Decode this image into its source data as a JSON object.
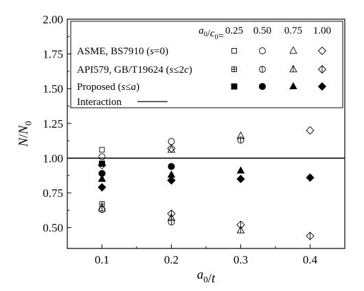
{
  "chart_data": {
    "type": "scatter",
    "title": "",
    "xlabel": "a0/t",
    "ylabel": "N/N0",
    "xlim": [
      0.05,
      0.45
    ],
    "ylim": [
      0.35,
      2.0
    ],
    "x_ticks": [
      "0.1",
      "0.2",
      "0.3",
      "0.4"
    ],
    "x_tick_values": [
      0.1,
      0.2,
      0.3,
      0.4
    ],
    "y_ticks": [
      "0.50",
      "0.75",
      "1.00",
      "1.25",
      "1.50",
      "1.75",
      "2.00"
    ],
    "y_tick_values": [
      0.5,
      0.75,
      1.0,
      1.25,
      1.5,
      1.75,
      2.0
    ],
    "reference_line": {
      "label": "Interaction",
      "y": 1.0
    },
    "legend": {
      "placement": "top-right",
      "header": "a0/c0=",
      "columns": [
        "0.25",
        "0.50",
        "0.75",
        "1.00"
      ],
      "rows": [
        {
          "label": "ASME, BS7910 (s=0)",
          "style": "open"
        },
        {
          "label": "API579, GB/T19624 (s≤2c)",
          "style": "crossed"
        },
        {
          "label": "Proposed (s≤a)",
          "style": "filled"
        },
        {
          "label": "Interaction",
          "style": "line"
        }
      ]
    },
    "series": [
      {
        "group": "ASME, BS7910 (s=0)",
        "ratio": "0.25",
        "marker": "square",
        "style": "open",
        "points": [
          [
            0.1,
            1.06
          ]
        ]
      },
      {
        "group": "ASME, BS7910 (s=0)",
        "ratio": "0.50",
        "marker": "circle",
        "style": "open",
        "points": [
          [
            0.1,
            1.01
          ],
          [
            0.2,
            1.12
          ]
        ]
      },
      {
        "group": "ASME, BS7910 (s=0)",
        "ratio": "0.75",
        "marker": "triangle",
        "style": "open",
        "points": [
          [
            0.2,
            1.06
          ],
          [
            0.3,
            1.16
          ]
        ]
      },
      {
        "group": "ASME, BS7910 (s=0)",
        "ratio": "1.00",
        "marker": "diamond",
        "style": "open",
        "points": [
          [
            0.1,
            0.95
          ],
          [
            0.2,
            1.07
          ],
          [
            0.4,
            1.2
          ]
        ]
      },
      {
        "group": "API579, GB/T19624 (s≤2c)",
        "ratio": "0.25",
        "marker": "square",
        "style": "crossed",
        "points": [
          [
            0.1,
            0.67
          ]
        ]
      },
      {
        "group": "API579, GB/T19624 (s≤2c)",
        "ratio": "0.50",
        "marker": "circle",
        "style": "crossed",
        "points": [
          [
            0.1,
            0.63
          ],
          [
            0.2,
            0.54
          ],
          [
            0.3,
            1.13
          ]
        ]
      },
      {
        "group": "API579, GB/T19624 (s≤2c)",
        "ratio": "0.75",
        "marker": "triangle",
        "style": "crossed",
        "points": [
          [
            0.1,
            0.64
          ],
          [
            0.2,
            0.57
          ],
          [
            0.3,
            0.48
          ]
        ]
      },
      {
        "group": "API579, GB/T19624 (s≤2c)",
        "ratio": "1.00",
        "marker": "diamond",
        "style": "crossed",
        "points": [
          [
            0.2,
            0.6
          ],
          [
            0.3,
            0.52
          ],
          [
            0.4,
            0.44
          ]
        ]
      },
      {
        "group": "Proposed (s≤a)",
        "ratio": "0.25",
        "marker": "square",
        "style": "filled",
        "points": [
          [
            0.1,
            0.96
          ]
        ]
      },
      {
        "group": "Proposed (s≤a)",
        "ratio": "0.50",
        "marker": "circle",
        "style": "filled",
        "points": [
          [
            0.1,
            0.89
          ],
          [
            0.2,
            0.94
          ]
        ]
      },
      {
        "group": "Proposed (s≤a)",
        "ratio": "0.75",
        "marker": "triangle",
        "style": "filled",
        "points": [
          [
            0.1,
            0.85
          ],
          [
            0.2,
            0.88
          ],
          [
            0.3,
            0.91
          ]
        ]
      },
      {
        "group": "Proposed (s≤a)",
        "ratio": "1.00",
        "marker": "diamond",
        "style": "filled",
        "points": [
          [
            0.1,
            0.79
          ],
          [
            0.2,
            0.84
          ],
          [
            0.3,
            0.85
          ],
          [
            0.4,
            0.86
          ]
        ]
      }
    ]
  }
}
